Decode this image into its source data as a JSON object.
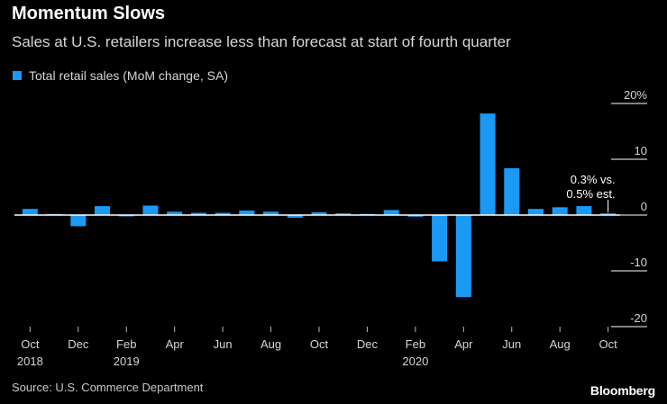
{
  "chart_data": {
    "type": "bar",
    "title": "Momentum Slows",
    "subtitle": "Sales at U.S. retailers increase less than forecast at start of fourth quarter",
    "legend": [
      {
        "name": "Total retail sales (MoM change, SA)",
        "color": "#1a9af5"
      }
    ],
    "xlabel": "",
    "ylabel": "",
    "ylim": [
      -20,
      20
    ],
    "yticks": [
      20,
      10,
      0,
      -10,
      -20
    ],
    "ytick_labels": [
      "20%",
      "10",
      "0",
      "-10",
      "-20"
    ],
    "categories": [
      "Oct 2018",
      "Nov 2018",
      "Dec 2018",
      "Jan 2019",
      "Feb 2019",
      "Mar 2019",
      "Apr 2019",
      "May 2019",
      "Jun 2019",
      "Jul 2019",
      "Aug 2019",
      "Sep 2019",
      "Oct 2019",
      "Nov 2019",
      "Dec 2019",
      "Jan 2020",
      "Feb 2020",
      "Mar 2020",
      "Apr 2020",
      "May 2020",
      "Jun 2020",
      "Jul 2020",
      "Aug 2020",
      "Sep 2020",
      "Oct 2020"
    ],
    "series": [
      {
        "name": "Total retail sales (MoM change, SA)",
        "values": [
          1.1,
          0.2,
          -2.0,
          1.6,
          -0.2,
          1.7,
          0.6,
          0.4,
          0.4,
          0.8,
          0.6,
          -0.5,
          0.5,
          0.3,
          0.2,
          0.9,
          -0.3,
          -8.3,
          -14.7,
          18.2,
          8.4,
          1.1,
          1.4,
          1.6,
          0.3
        ]
      }
    ],
    "x_tick_labels": [
      {
        "index": 0,
        "line1": "Oct",
        "line2": "2018"
      },
      {
        "index": 2,
        "line1": "Dec",
        "line2": ""
      },
      {
        "index": 4,
        "line1": "Feb",
        "line2": "2019"
      },
      {
        "index": 6,
        "line1": "Apr",
        "line2": ""
      },
      {
        "index": 8,
        "line1": "Jun",
        "line2": ""
      },
      {
        "index": 10,
        "line1": "Aug",
        "line2": ""
      },
      {
        "index": 12,
        "line1": "Oct",
        "line2": ""
      },
      {
        "index": 14,
        "line1": "Dec",
        "line2": ""
      },
      {
        "index": 16,
        "line1": "Feb",
        "line2": "2020"
      },
      {
        "index": 18,
        "line1": "Apr",
        "line2": ""
      },
      {
        "index": 20,
        "line1": "Jun",
        "line2": ""
      },
      {
        "index": 22,
        "line1": "Aug",
        "line2": ""
      },
      {
        "index": 24,
        "line1": "Oct",
        "line2": ""
      }
    ],
    "annotation": {
      "index": 24,
      "line1": "0.3% vs.",
      "line2": "0.5% est."
    }
  },
  "footer": {
    "source": "Source: U.S. Commerce Department",
    "brand": "Bloomberg"
  },
  "colors": {
    "bar": "#1a9af5",
    "background": "#000000",
    "axis": "#ffffff",
    "tick_text": "#d6d6d6"
  }
}
